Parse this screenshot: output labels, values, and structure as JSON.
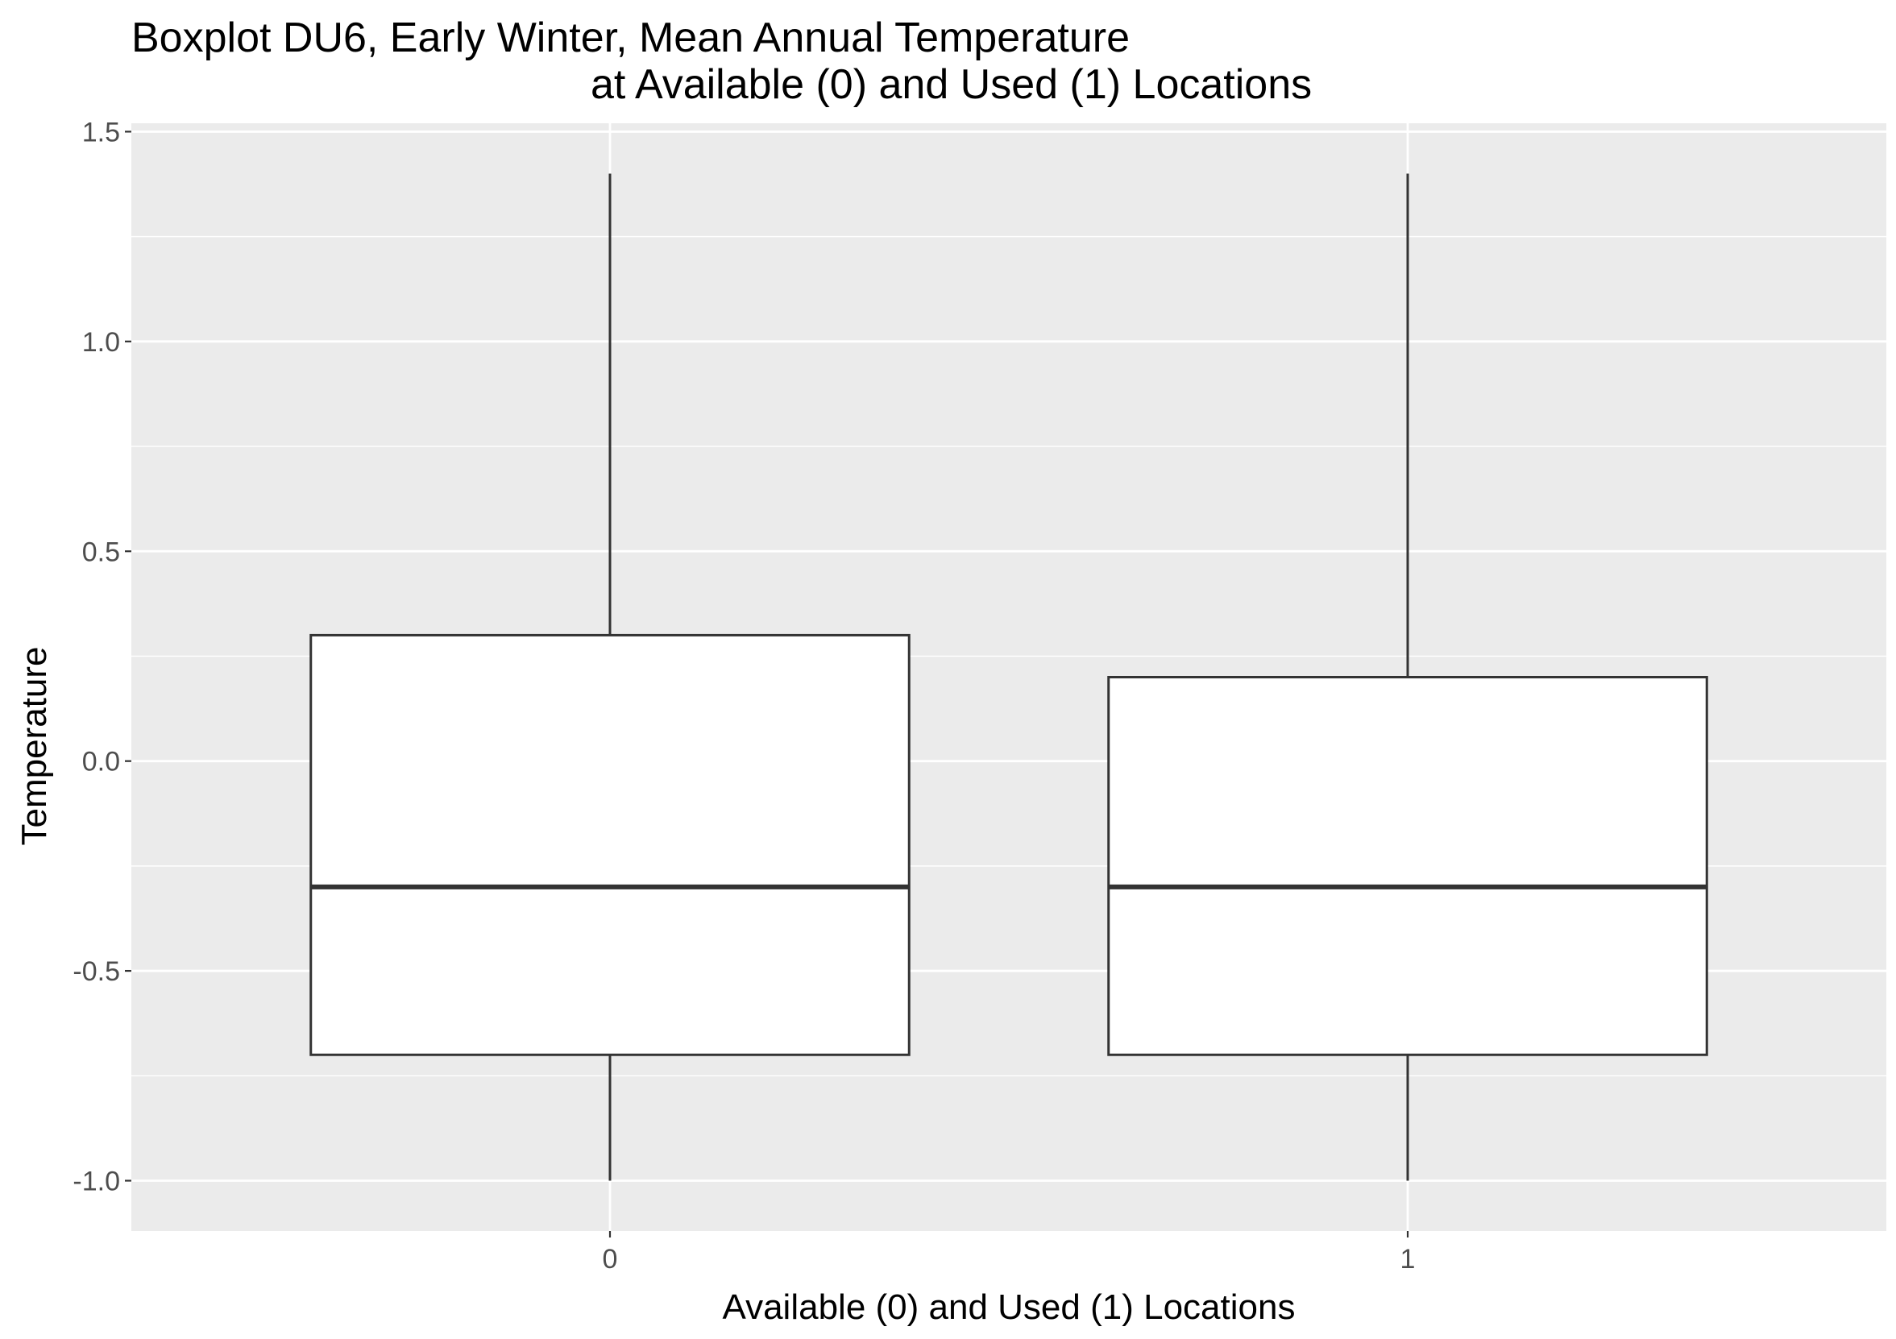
{
  "chart_data": {
    "type": "boxplot",
    "title_line1": "Boxplot DU6, Early Winter, Mean Annual Temperature",
    "title_line2": "at Available (0) and Used (1) Locations",
    "xlabel": "Available (0) and Used (1) Locations",
    "ylabel": "Temperature",
    "categories": [
      "0",
      "1"
    ],
    "boxes": [
      {
        "category": "0",
        "whisker_low": -1.0,
        "q1": -0.7,
        "median": -0.3,
        "q3": 0.3,
        "whisker_high": 1.4
      },
      {
        "category": "1",
        "whisker_low": -1.0,
        "q1": -0.7,
        "median": -0.3,
        "q3": 0.2,
        "whisker_high": 1.4
      }
    ],
    "ylim": [
      -1.12,
      1.52
    ],
    "yticks": [
      -1.0,
      -0.5,
      0.0,
      0.5,
      1.0,
      1.5
    ],
    "ytick_labels": [
      "-1.0",
      "-0.5",
      "0.0",
      "0.5",
      "1.0",
      "1.5"
    ],
    "grid": true,
    "colors": {
      "panel_background": "#ebebeb",
      "grid_line": "#ffffff",
      "box_fill": "#ffffff",
      "box_stroke": "#333333"
    }
  }
}
